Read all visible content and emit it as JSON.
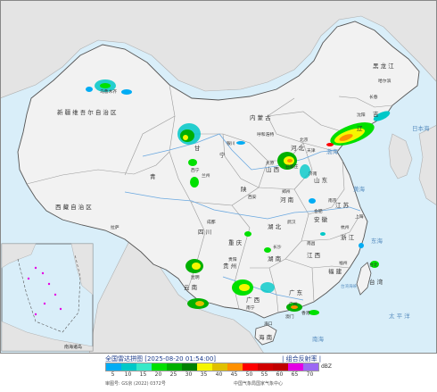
{
  "map": {
    "colors": {
      "sea": "#d9eef9",
      "land": "#f2f2f2",
      "foreign_land": "#e4e4e4",
      "province_border": "#9a9a9a",
      "country_border": "#555555",
      "river": "#6aa8e0",
      "label": "#333333",
      "sea_label": "#5a8fc0"
    },
    "provinces": {
      "xinjiang": "新 疆 维 吾 尔 自 治 区",
      "xizang": "西 藏 自 治 区",
      "qinghai": "青",
      "gansu": "甘",
      "neimenggu": "内 蒙 古",
      "heilongjiang": "黑 龙 江",
      "jilin": "吉",
      "liaoning": "辽",
      "hebei": "河 北",
      "shanxi": "山 西",
      "shaanxi": "陕",
      "ningxia": "宁",
      "shandong": "山 东",
      "henan": "河 南",
      "jiangsu": "江 苏",
      "anhui": "安 徽",
      "hubei": "湖 北",
      "sichuan": "四 川",
      "chongqing": "重 庆",
      "guizhou": "贵 州",
      "yunnan": "云 南",
      "hunan": "湖 南",
      "jiangxi": "江 西",
      "zhejiang": "浙 江",
      "fujian": "福 建",
      "guangxi": "广 西",
      "guangdong": "广 东",
      "hainan": "海 南",
      "taiwan": "台 湾"
    },
    "cities": {
      "urumqi": "乌鲁木齐",
      "lhasa": "拉萨",
      "xining": "西宁",
      "lanzhou": "兰州",
      "yinchuan": "银川",
      "hohhot": "呼和浩特",
      "beijing": "北京",
      "tianjin": "天津",
      "shijiazhuang": "石家庄",
      "taiyuan": "太原",
      "jinan": "济南",
      "zhengzhou": "郑州",
      "xian": "西安",
      "harbin": "哈尔滨",
      "changchun": "长春",
      "shenyang": "沈阳",
      "chengdu": "成都",
      "wuhan": "武汉",
      "hefei": "合肥",
      "nanjing": "南京",
      "shanghai": "上海",
      "hangzhou": "杭州",
      "nanchang": "南昌",
      "changsha": "长沙",
      "guiyang": "贵阳",
      "kunming": "昆明",
      "nanning": "南宁",
      "guangzhou": "广州",
      "fuzhou": "福州",
      "taipei": "台北",
      "haikou": "海口",
      "macau": "澳门",
      "hongkong": "香港"
    },
    "seas": {
      "bohai": "渤海",
      "huanghai": "黄海",
      "donghai": "东海",
      "nanhai": "南海",
      "taipingyang": "太 平 洋",
      "riben_hai": "日本海",
      "taiwan_strait": "台湾海峡"
    },
    "inset": {
      "label": "南海诸岛"
    }
  },
  "legend": {
    "title": "全国雷达拼图 [2025-08-20 01:54:00]",
    "product": "| 组合反射率 |",
    "unit": "dBZ",
    "map_number": "审图号: GS京 (2022) 0372号",
    "org": "中国气象局国家气象中心",
    "scale": [
      {
        "label": "5",
        "color": "#00acf4"
      },
      {
        "label": "10",
        "color": "#00c8c8"
      },
      {
        "label": "15",
        "color": "#38e8c8"
      },
      {
        "label": "20",
        "color": "#00e000"
      },
      {
        "label": "25",
        "color": "#00b000"
      },
      {
        "label": "30",
        "color": "#008000"
      },
      {
        "label": "35",
        "color": "#f6f600"
      },
      {
        "label": "40",
        "color": "#e0c000"
      },
      {
        "label": "45",
        "color": "#ff9000"
      },
      {
        "label": "50",
        "color": "#ff0000"
      },
      {
        "label": "55",
        "color": "#d00000"
      },
      {
        "label": "60",
        "color": "#c00000"
      },
      {
        "label": "65",
        "color": "#e400e4"
      },
      {
        "label": "70",
        "color": "#9c68f4"
      }
    ]
  }
}
